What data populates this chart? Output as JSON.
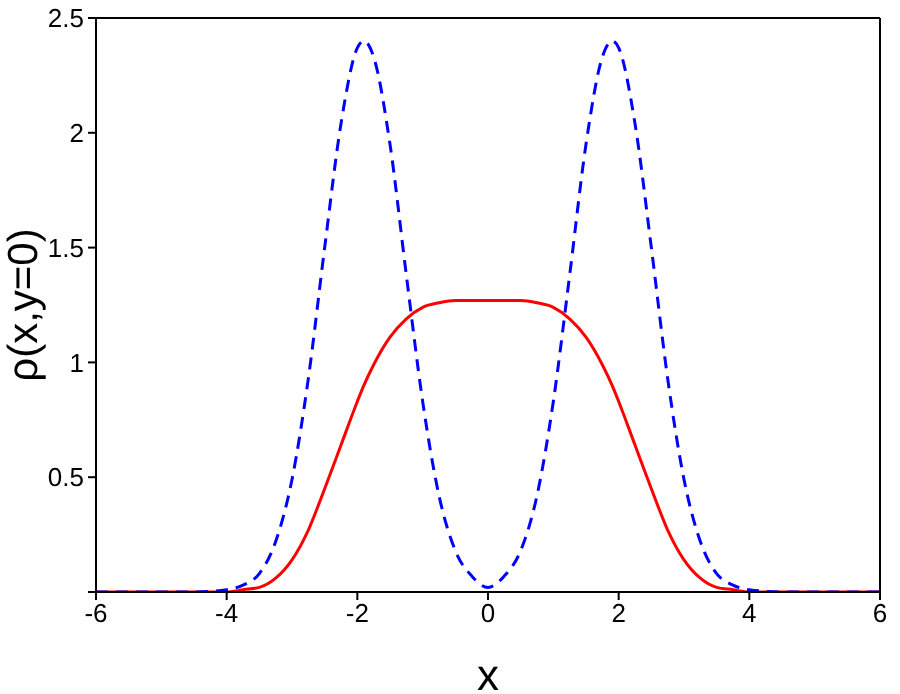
{
  "chart_data": {
    "type": "line",
    "xlabel": "x",
    "ylabel": "ρ(x,y=0)",
    "x": [
      -6,
      -5,
      -4.5,
      -4,
      -3.75,
      -3.5,
      -3.25,
      -3,
      -2.75,
      -2.5,
      -2.25,
      -2,
      -1.9,
      -1.75,
      -1.5,
      -1.25,
      -1,
      -0.75,
      -0.5,
      -0.25,
      0,
      0.25,
      0.5,
      0.75,
      1,
      1.25,
      1.5,
      1.75,
      1.9,
      2,
      2.25,
      2.5,
      2.75,
      3,
      3.25,
      3.5,
      3.75,
      4,
      4.5,
      5,
      6
    ],
    "series": [
      {
        "color": "#ff0000",
        "line_style": "solid",
        "values": [
          0,
          0,
          0,
          0,
          0.01,
          0.02,
          0.06,
          0.14,
          0.27,
          0.45,
          0.64,
          0.83,
          0.9,
          0.99,
          1.11,
          1.19,
          1.24,
          1.26,
          1.27,
          1.27,
          1.27,
          1.27,
          1.27,
          1.26,
          1.24,
          1.19,
          1.11,
          0.99,
          0.9,
          0.83,
          0.64,
          0.45,
          0.27,
          0.14,
          0.06,
          0.02,
          0.01,
          0,
          0,
          0,
          0
        ]
      },
      {
        "color": "#0000ff",
        "line_style": "dashed",
        "values": [
          0,
          0,
          0,
          0.01,
          0.03,
          0.08,
          0.22,
          0.49,
          0.93,
          1.5,
          2.04,
          2.37,
          2.4,
          2.33,
          1.95,
          1.38,
          0.83,
          0.42,
          0.18,
          0.07,
          0.02,
          0.07,
          0.18,
          0.42,
          0.83,
          1.38,
          1.95,
          2.33,
          2.4,
          2.37,
          2.04,
          1.5,
          0.93,
          0.49,
          0.22,
          0.08,
          0.03,
          0.01,
          0,
          0,
          0
        ]
      }
    ],
    "xlim": [
      -6,
      6
    ],
    "xticks": [
      -6,
      -4,
      -2,
      0,
      2,
      4,
      6
    ],
    "ylim": [
      0,
      2.5
    ],
    "yticks": [
      {
        "value": 0,
        "label": null
      },
      0.5,
      1,
      1.5,
      2,
      2.5
    ],
    "grid": false,
    "legend": false,
    "marker": "none"
  }
}
